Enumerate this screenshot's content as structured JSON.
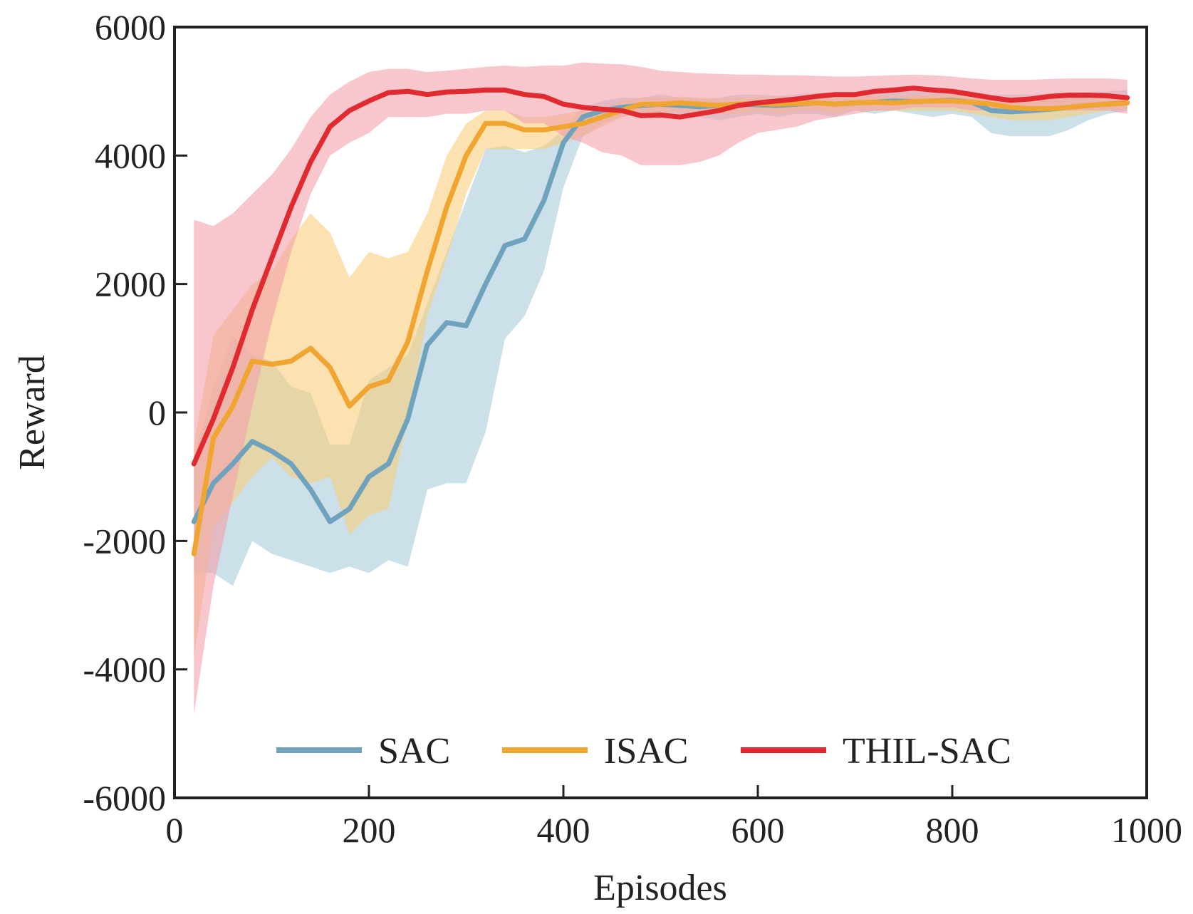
{
  "chart_data": {
    "type": "line",
    "title": "",
    "xlabel": "Episodes",
    "ylabel": "Reward",
    "xlim": [
      0,
      1000
    ],
    "ylim": [
      -6000,
      6000
    ],
    "xticks": [
      "0",
      "200",
      "400",
      "600",
      "800",
      "1000"
    ],
    "yticks": [
      "6000",
      "4000",
      "2000",
      "0",
      "-2000",
      "-4000",
      "-6000"
    ],
    "grid": false,
    "legend_position": "bottom-center",
    "x": [
      20,
      40,
      60,
      80,
      100,
      120,
      140,
      160,
      180,
      200,
      220,
      240,
      260,
      280,
      300,
      320,
      340,
      360,
      380,
      400,
      420,
      440,
      460,
      480,
      500,
      520,
      540,
      560,
      580,
      600,
      620,
      640,
      660,
      680,
      700,
      720,
      740,
      760,
      780,
      800,
      820,
      840,
      860,
      880,
      900,
      920,
      940,
      960,
      980
    ],
    "series": [
      {
        "name": "SAC",
        "color": "#6fa3bd",
        "band_color": "#a9cbdb",
        "values": [
          -1700,
          -1100,
          -800,
          -450,
          -600,
          -800,
          -1200,
          -1700,
          -1500,
          -1000,
          -800,
          -100,
          1050,
          1400,
          1350,
          2000,
          2600,
          2700,
          3300,
          4200,
          4600,
          4700,
          4750,
          4780,
          4800,
          4780,
          4760,
          4780,
          4800,
          4790,
          4780,
          4800,
          4820,
          4800,
          4820,
          4830,
          4850,
          4840,
          4850,
          4860,
          4830,
          4700,
          4680,
          4700,
          4720,
          4750,
          4780,
          4800,
          4820
        ],
        "lower": [
          -2500,
          -2500,
          -2700,
          -2000,
          -2200,
          -2300,
          -2400,
          -2500,
          -2400,
          -2500,
          -2300,
          -2400,
          -1200,
          -1100,
          -1100,
          -300,
          1150,
          1500,
          2200,
          3500,
          4300,
          4500,
          4600,
          4650,
          4650,
          4650,
          4600,
          4550,
          4600,
          4650,
          4600,
          4650,
          4650,
          4600,
          4700,
          4650,
          4700,
          4650,
          4600,
          4650,
          4600,
          4350,
          4300,
          4300,
          4300,
          4400,
          4550,
          4650,
          4700
        ],
        "upper": [
          -700,
          400,
          1200,
          900,
          800,
          400,
          300,
          -500,
          -500,
          500,
          700,
          900,
          1700,
          2500,
          3300,
          4100,
          4150,
          4050,
          4150,
          4400,
          4750,
          4850,
          4900,
          4900,
          4950,
          4900,
          4880,
          4900,
          4950,
          4950,
          4930,
          4950,
          4980,
          4950,
          4980,
          5000,
          5000,
          5000,
          5020,
          5030,
          5000,
          4950,
          4950,
          4950,
          4970,
          4980,
          4990,
          5000,
          5020
        ]
      },
      {
        "name": "ISAC",
        "color": "#f0a530",
        "band_color": "#f8cf7c",
        "values": [
          -2200,
          -400,
          100,
          800,
          750,
          800,
          1000,
          700,
          100,
          400,
          500,
          1100,
          2200,
          3200,
          4000,
          4500,
          4500,
          4400,
          4400,
          4450,
          4500,
          4600,
          4700,
          4800,
          4800,
          4820,
          4800,
          4780,
          4800,
          4810,
          4800,
          4810,
          4820,
          4800,
          4820,
          4830,
          4820,
          4840,
          4850,
          4850,
          4830,
          4800,
          4750,
          4730,
          4730,
          4750,
          4780,
          4800,
          4820
        ],
        "lower": [
          -3800,
          -1800,
          -1400,
          -1000,
          -700,
          -1000,
          -1100,
          -1000,
          -1900,
          -1600,
          -1500,
          -100,
          1500,
          2400,
          3400,
          4100,
          4100,
          4100,
          4100,
          4200,
          4300,
          4450,
          4600,
          4650,
          4650,
          4700,
          4650,
          4650,
          4650,
          4700,
          4650,
          4700,
          4700,
          4650,
          4700,
          4700,
          4700,
          4700,
          4700,
          4700,
          4650,
          4600,
          4550,
          4550,
          4550,
          4600,
          4650,
          4700,
          4720
        ],
        "upper": [
          -500,
          1200,
          1600,
          2000,
          2200,
          2700,
          3100,
          2800,
          2100,
          2500,
          2400,
          2500,
          3100,
          4000,
          4500,
          4700,
          4700,
          4600,
          4600,
          4650,
          4700,
          4750,
          4850,
          4900,
          4900,
          4920,
          4900,
          4880,
          4900,
          4920,
          4900,
          4920,
          4920,
          4900,
          4920,
          4930,
          4920,
          4940,
          4950,
          4960,
          4940,
          4920,
          4900,
          4880,
          4880,
          4900,
          4920,
          4930,
          4950
        ]
      },
      {
        "name": "THIL-SAC",
        "color": "#e12a2f",
        "band_color": "#f4a0ab",
        "values": [
          -800,
          -100,
          700,
          1600,
          2400,
          3200,
          3900,
          4450,
          4700,
          4850,
          4980,
          5000,
          4950,
          4990,
          5000,
          5020,
          5020,
          4950,
          4920,
          4800,
          4750,
          4720,
          4700,
          4620,
          4630,
          4600,
          4650,
          4700,
          4780,
          4820,
          4850,
          4880,
          4920,
          4950,
          4950,
          5000,
          5020,
          5050,
          5020,
          5000,
          4950,
          4900,
          4860,
          4880,
          4920,
          4940,
          4940,
          4930,
          4900
        ],
        "lower": [
          -4700,
          -2700,
          -1300,
          100,
          1400,
          2500,
          3400,
          4000,
          4200,
          4350,
          4600,
          4600,
          4600,
          4650,
          4650,
          4700,
          4700,
          4500,
          4500,
          4300,
          4200,
          4050,
          4000,
          3850,
          3850,
          3850,
          3900,
          4000,
          4200,
          4350,
          4400,
          4450,
          4550,
          4600,
          4650,
          4700,
          4700,
          4750,
          4750,
          4750,
          4700,
          4700,
          4650,
          4650,
          4700,
          4700,
          4700,
          4700,
          4650
        ],
        "upper": [
          3000,
          2900,
          3100,
          3400,
          3700,
          4100,
          4600,
          4950,
          5150,
          5300,
          5350,
          5350,
          5300,
          5320,
          5350,
          5380,
          5400,
          5380,
          5400,
          5400,
          5450,
          5430,
          5420,
          5380,
          5320,
          5300,
          5280,
          5270,
          5260,
          5260,
          5250,
          5250,
          5240,
          5230,
          5230,
          5240,
          5250,
          5260,
          5250,
          5230,
          5200,
          5180,
          5180,
          5180,
          5190,
          5200,
          5200,
          5200,
          5180
        ]
      }
    ]
  }
}
